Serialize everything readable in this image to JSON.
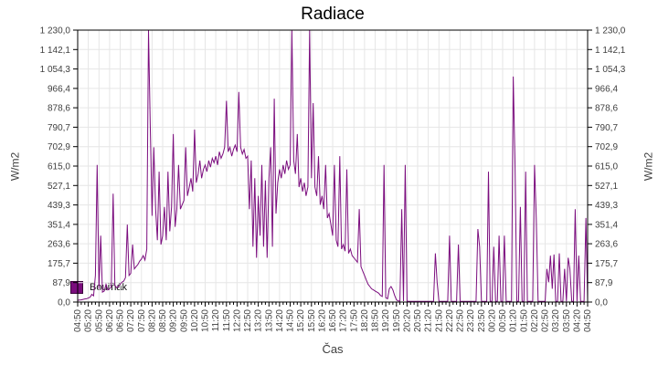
{
  "colors": {
    "line": "#7b0d7e",
    "grid": "#e6e6e6",
    "axis": "#000000",
    "tick_text": "#3f3f3f",
    "title_text": "#000000"
  },
  "chart_data": {
    "type": "line",
    "title": "Radiace",
    "xlabel": "Čas",
    "ylabel_left": "W/m2",
    "ylabel_right": "W/m2",
    "ylim": [
      0,
      1230
    ],
    "grid": true,
    "legend": {
      "position": "bottom-left",
      "entries": [
        {
          "label": "Bouřňák",
          "color": "#7b0d7e"
        }
      ]
    },
    "y_tick_values": [
      0,
      87.9,
      175.7,
      263.6,
      351.4,
      439.3,
      527.1,
      615.0,
      702.9,
      790.7,
      878.6,
      966.4,
      1054.3,
      1142.1,
      1230.0
    ],
    "y_tick_labels": [
      "0,0",
      "87,9",
      "175,7",
      "263,6",
      "351,4",
      "439,3",
      "527,1",
      "615,0",
      "702,9",
      "790,7",
      "878,6",
      "966,4",
      "1 054,3",
      "1 142,1",
      "1 230,0"
    ],
    "x_tick_labels": [
      "04:50",
      "05:20",
      "05:50",
      "06:20",
      "06:50",
      "07:20",
      "07:50",
      "08:20",
      "08:50",
      "09:20",
      "09:50",
      "10:20",
      "10:50",
      "11:20",
      "11:50",
      "12:20",
      "12:50",
      "13:20",
      "13:50",
      "14:20",
      "14:50",
      "15:20",
      "15:50",
      "16:20",
      "16:50",
      "17:20",
      "17:50",
      "18:20",
      "18:50",
      "19:20",
      "19:50",
      "20:20",
      "20:50",
      "21:20",
      "21:50",
      "22:20",
      "22:50",
      "23:20",
      "23:50",
      "00:20",
      "00:50",
      "01:20",
      "01:50",
      "02:20",
      "02:50",
      "03:20",
      "03:50",
      "04:20",
      "04:50"
    ],
    "x_minor_tick_min": 10,
    "x_major_tick_min": 30,
    "series": [
      {
        "name": "Bouřňák",
        "color": "#7b0d7e",
        "start": "04:50",
        "interval_min": 5,
        "values": [
          8,
          9,
          10,
          12,
          14,
          15,
          18,
          22,
          35,
          28,
          120,
          620,
          60,
          300,
          45,
          50,
          80,
          55,
          60,
          70,
          490,
          75,
          65,
          70,
          80,
          90,
          95,
          110,
          350,
          120,
          130,
          260,
          150,
          160,
          170,
          185,
          195,
          210,
          190,
          240,
          1230,
          800,
          390,
          700,
          420,
          280,
          590,
          260,
          300,
          430,
          280,
          590,
          320,
          430,
          760,
          340,
          420,
          620,
          420,
          440,
          460,
          700,
          480,
          520,
          560,
          500,
          780,
          540,
          580,
          640,
          560,
          600,
          620,
          590,
          640,
          610,
          650,
          630,
          660,
          620,
          680,
          650,
          670,
          700,
          910,
          680,
          700,
          660,
          690,
          710,
          680,
          950,
          700,
          670,
          690,
          650,
          660,
          420,
          640,
          250,
          560,
          200,
          480,
          300,
          620,
          250,
          550,
          200,
          560,
          700,
          250,
          920,
          400,
          540,
          600,
          560,
          620,
          580,
          640,
          600,
          620,
          1230,
          640,
          580,
          760,
          520,
          560,
          500,
          540,
          480,
          520,
          1230,
          560,
          900,
          520,
          480,
          660,
          440,
          480,
          420,
          620,
          380,
          400,
          350,
          300,
          620,
          280,
          250,
          660,
          240,
          260,
          230,
          600,
          220,
          240,
          210,
          200,
          190,
          180,
          420,
          160,
          140,
          120,
          100,
          80,
          70,
          60,
          55,
          50,
          45,
          40,
          30,
          25,
          620,
          20,
          15,
          60,
          70,
          55,
          30,
          10,
          5,
          4,
          420,
          4,
          620,
          4,
          3,
          3,
          3,
          3,
          3,
          3,
          3,
          3,
          3,
          3,
          3,
          3,
          3,
          3,
          3,
          220,
          90,
          3,
          3,
          3,
          3,
          3,
          3,
          300,
          3,
          3,
          3,
          3,
          260,
          3,
          3,
          3,
          3,
          3,
          3,
          3,
          3,
          3,
          3,
          330,
          250,
          3,
          3,
          3,
          3,
          590,
          3,
          3,
          250,
          3,
          3,
          300,
          3,
          3,
          300,
          3,
          3,
          3,
          3,
          1020,
          615,
          3,
          3,
          430,
          3,
          3,
          590,
          3,
          3,
          3,
          3,
          620,
          380,
          3,
          3,
          3,
          3,
          3,
          150,
          90,
          210,
          60,
          215,
          3,
          3,
          220,
          3,
          3,
          150,
          3,
          200,
          150,
          3,
          3,
          420,
          3,
          210,
          3,
          3,
          3,
          380,
          10
        ]
      }
    ]
  }
}
